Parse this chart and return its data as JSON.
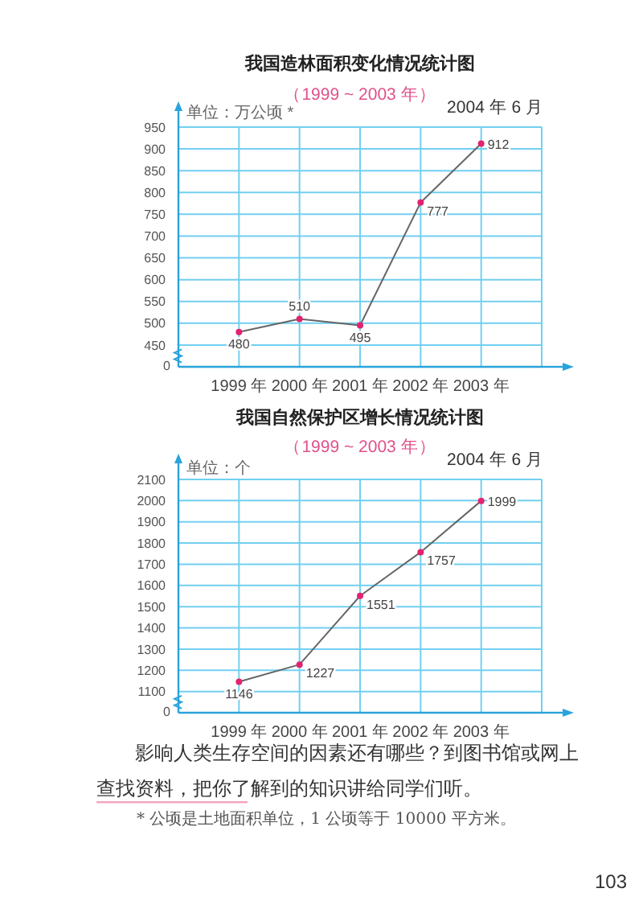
{
  "chart_data": [
    {
      "type": "line",
      "title": "我国造林面积变化情况统计图",
      "subtitle": "（1999 ~ 2003 年）",
      "ylabel": "单位：万公顷 *",
      "annotations": [
        "2004 年 6 月",
        "0"
      ],
      "categories": [
        "1999 年",
        "2000 年",
        "2001 年",
        "2002 年",
        "2003 年"
      ],
      "series": [
        {
          "color": "#666666",
          "colors": [
            "#e3236f",
            "#e3236f",
            "#e3236f",
            "#e3236f",
            "#e3236f"
          ],
          "values": [
            480,
            510,
            495,
            777,
            912
          ]
        }
      ],
      "ylim": [
        400,
        950
      ],
      "yticks": [
        450,
        500,
        550,
        600,
        650,
        700,
        750,
        800,
        850,
        900,
        950
      ],
      "grid": true,
      "marker": "circle",
      "data_labels": true
    },
    {
      "type": "line",
      "title": "我国自然保护区增长情况统计图",
      "subtitle": "（1999 ~ 2003 年）",
      "ylabel": "单位：个",
      "annotations": [
        "2004 年 6 月",
        "0",
        "影响人类生存空间的因素还有哪些？到图书馆或网上查找资料，把你了解到的知识讲给同学们听。",
        "* 公顷是土地面积单位，1 公顷等于 10000 平方米。",
        "103"
      ],
      "categories": [
        "1999 年",
        "2000 年",
        "2001 年",
        "2002 年",
        "2003 年"
      ],
      "series": [
        {
          "color": "#666666",
          "colors": [
            "#e3236f",
            "#e3236f",
            "#e3236f",
            "#e3236f",
            "#e3236f"
          ],
          "values": [
            1146,
            1227,
            1551,
            1757,
            1999
          ]
        }
      ],
      "ylim": [
        1000,
        2100
      ],
      "yticks": [
        1100,
        1200,
        1300,
        1400,
        1500,
        1600,
        1700,
        1800,
        1900,
        2000,
        2100
      ],
      "grid": true,
      "marker": "circle",
      "data_labels": true
    }
  ]
}
